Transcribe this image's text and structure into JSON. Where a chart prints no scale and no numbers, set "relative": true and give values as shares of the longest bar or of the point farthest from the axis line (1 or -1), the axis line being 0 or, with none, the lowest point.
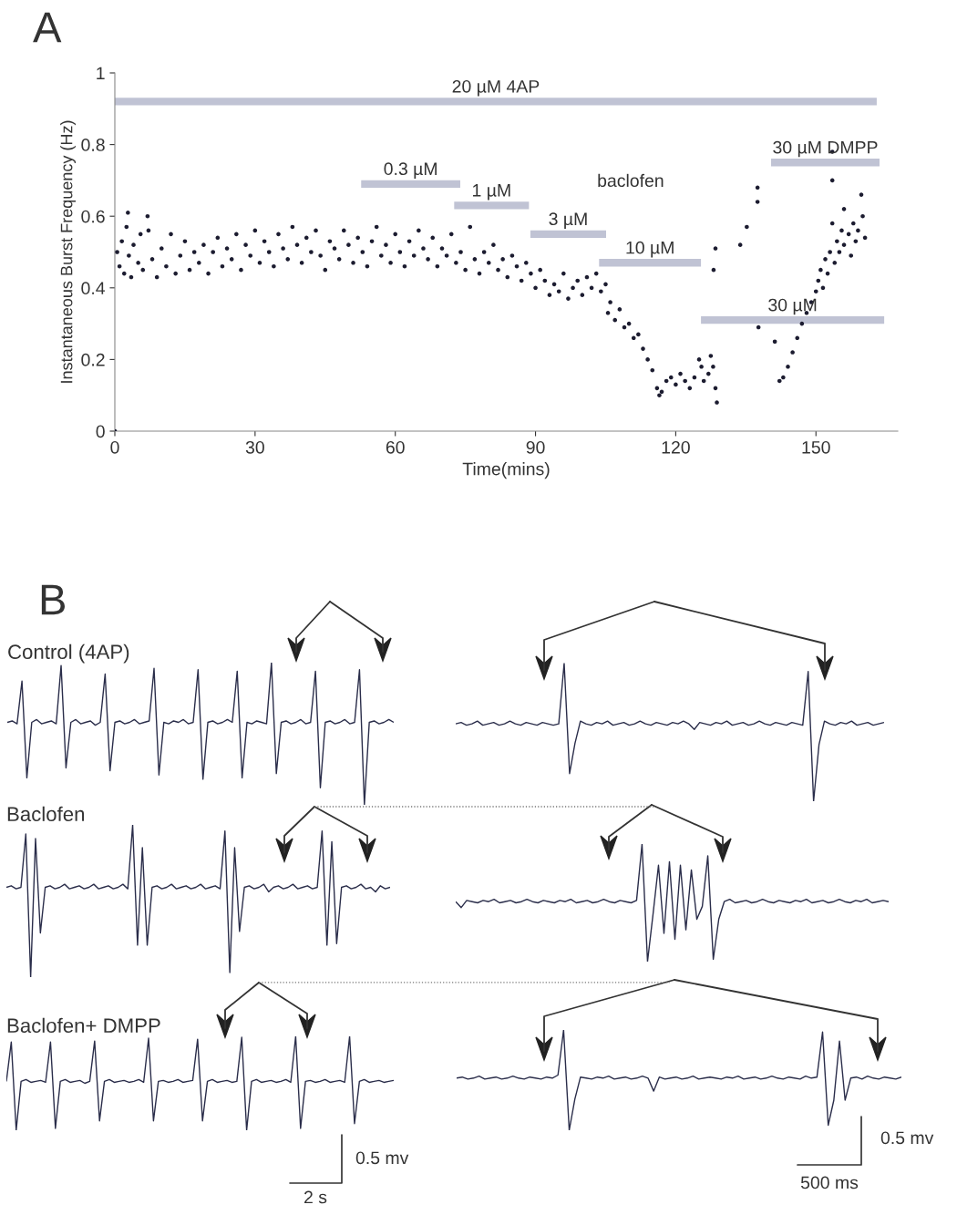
{
  "chart_data": [
    {
      "type": "scatter",
      "xlabel": "Time(mins)",
      "ylabel": "Instantaneous Burst Frequency (Hz)",
      "xlim": [
        0,
        167.5
      ],
      "ylim": [
        0,
        1
      ],
      "xticks": [
        0,
        30,
        60,
        90,
        120,
        150
      ],
      "yticks": [
        0,
        0.2,
        0.4,
        0.6,
        0.8,
        1
      ],
      "annotations": [
        "A",
        "baclofen"
      ],
      "series": [
        {
          "type": "scatter",
          "marker": "circle",
          "color": "#1c1c30",
          "x": [
            0,
            0.5,
            1,
            1.5,
            2,
            2.5,
            2.8,
            3,
            3.5,
            4,
            5,
            5.5,
            6,
            7,
            7.2,
            8,
            9,
            10,
            11,
            12,
            13,
            14,
            15,
            16,
            17,
            18,
            19,
            20,
            21,
            22,
            23,
            24,
            25,
            26,
            27,
            28,
            29,
            30,
            31,
            32,
            33,
            34,
            35,
            36,
            37,
            38,
            39,
            40,
            41,
            42,
            43,
            44,
            45,
            46,
            47,
            48,
            49,
            50,
            51,
            52,
            53,
            54,
            55,
            56,
            57,
            58,
            59,
            60,
            61,
            62,
            63,
            64,
            65,
            66,
            67,
            68,
            69,
            70,
            71,
            72,
            73,
            74,
            75,
            76,
            77,
            78,
            79,
            80,
            81,
            82,
            83,
            84,
            85,
            86,
            87,
            88,
            89,
            90,
            91,
            92,
            93,
            94,
            95,
            96,
            97,
            98,
            99,
            100,
            101,
            102,
            103,
            104,
            105,
            105.5,
            106,
            107,
            108,
            109,
            110,
            111,
            112,
            113,
            114,
            115,
            116,
            116.5,
            117,
            118,
            119,
            120,
            121,
            122,
            123,
            124,
            125,
            125.5,
            126,
            127,
            127.5,
            128,
            128.5,
            128.8,
            128.1,
            128.5,
            133.8,
            135.2,
            137.5,
            137.5,
            137.7,
            141.2,
            142.2,
            143,
            144,
            145,
            146,
            147,
            148,
            149,
            150,
            150.5,
            151,
            151.5,
            152,
            152.5,
            153,
            153.5,
            153.5,
            153.5,
            154,
            154.5,
            155,
            155.5,
            156,
            156,
            157,
            157.5,
            158,
            158.5,
            159,
            159.7,
            160,
            160.5
          ],
          "values": [
            0,
            0.5,
            0.46,
            0.53,
            0.44,
            0.57,
            0.61,
            0.49,
            0.43,
            0.52,
            0.47,
            0.55,
            0.45,
            0.6,
            0.56,
            0.48,
            0.43,
            0.51,
            0.46,
            0.55,
            0.44,
            0.49,
            0.53,
            0.45,
            0.5,
            0.47,
            0.52,
            0.44,
            0.5,
            0.54,
            0.46,
            0.51,
            0.48,
            0.55,
            0.45,
            0.52,
            0.49,
            0.56,
            0.47,
            0.53,
            0.5,
            0.46,
            0.55,
            0.51,
            0.48,
            0.57,
            0.52,
            0.47,
            0.54,
            0.5,
            0.56,
            0.49,
            0.45,
            0.53,
            0.51,
            0.48,
            0.56,
            0.52,
            0.47,
            0.54,
            0.5,
            0.46,
            0.53,
            0.57,
            0.49,
            0.52,
            0.47,
            0.55,
            0.5,
            0.46,
            0.53,
            0.49,
            0.56,
            0.51,
            0.48,
            0.54,
            0.46,
            0.51,
            0.49,
            0.55,
            0.47,
            0.5,
            0.45,
            0.57,
            0.48,
            0.44,
            0.5,
            0.47,
            0.52,
            0.45,
            0.48,
            0.43,
            0.49,
            0.46,
            0.42,
            0.47,
            0.44,
            0.4,
            0.45,
            0.42,
            0.38,
            0.41,
            0.39,
            0.44,
            0.37,
            0.4,
            0.42,
            0.38,
            0.43,
            0.4,
            0.44,
            0.39,
            0.41,
            0.33,
            0.36,
            0.31,
            0.34,
            0.29,
            0.3,
            0.26,
            0.27,
            0.23,
            0.2,
            0.17,
            0.12,
            0.1,
            0.11,
            0.14,
            0.15,
            0.13,
            0.16,
            0.14,
            0.12,
            0.15,
            0.2,
            0.18,
            0.14,
            0.16,
            0.21,
            0.18,
            0.12,
            0.08,
            0.45,
            0.51,
            0.52,
            0.57,
            0.64,
            0.68,
            0.29,
            0.25,
            0.14,
            0.15,
            0.18,
            0.22,
            0.26,
            0.3,
            0.33,
            0.36,
            0.39,
            0.42,
            0.45,
            0.4,
            0.48,
            0.44,
            0.5,
            0.58,
            0.7,
            0.78,
            0.47,
            0.53,
            0.5,
            0.56,
            0.52,
            0.62,
            0.55,
            0.49,
            0.58,
            0.53,
            0.56,
            0.66,
            0.6,
            0.54
          ]
        },
        {
          "type": "line",
          "name": "20 µM 4AP",
          "color": "#c0c3d4",
          "x": [
            0,
            163
          ],
          "values": [
            0.92,
            0.92
          ]
        },
        {
          "type": "line",
          "name": "0.3 µM",
          "color": "#c0c3d4",
          "x": [
            52.7,
            73.9
          ],
          "values": [
            0.69,
            0.69
          ]
        },
        {
          "type": "line",
          "name": "1 µM",
          "color": "#c0c3d4",
          "x": [
            72.6,
            88.6
          ],
          "values": [
            0.63,
            0.63
          ]
        },
        {
          "type": "line",
          "name": "3 µM",
          "color": "#c0c3d4",
          "x": [
            88.9,
            105.1
          ],
          "values": [
            0.55,
            0.55
          ]
        },
        {
          "type": "line",
          "name": "10 µM",
          "color": "#c0c3d4",
          "x": [
            103.6,
            125.4
          ],
          "values": [
            0.47,
            0.47
          ]
        },
        {
          "type": "line",
          "name": "30 µM",
          "color": "#c0c3d4",
          "x": [
            125.4,
            164.6
          ],
          "values": [
            0.31,
            0.31
          ]
        },
        {
          "type": "line",
          "name": "30 µM DMPP",
          "color": "#c0c3d4",
          "x": [
            140.4,
            163.6
          ],
          "values": [
            0.75,
            0.75
          ]
        }
      ]
    },
    {
      "type": "line",
      "relative": true,
      "title": "Control (4AP)",
      "annotations": [
        "B"
      ],
      "color": "#2a2d4a",
      "categories": [
        null,
        null,
        null,
        null,
        null,
        null,
        null,
        null,
        null,
        null,
        null,
        null,
        null,
        null,
        null,
        null,
        null,
        null,
        null,
        null,
        null,
        null,
        null,
        null,
        null,
        null,
        null,
        null,
        null,
        null,
        null,
        null,
        null,
        null,
        null,
        null,
        null,
        null,
        null,
        null,
        null,
        null,
        null,
        null,
        null,
        null,
        null,
        null,
        null,
        null,
        null,
        null,
        null,
        null,
        null,
        null,
        null,
        null,
        null,
        null,
        null,
        null,
        null,
        null,
        null,
        null,
        null,
        null,
        null,
        null,
        null,
        null,
        null,
        null,
        null,
        null,
        null,
        null,
        null,
        null
      ],
      "values": [
        0.58,
        0.59,
        0.57,
        0.87,
        0.19,
        0.58,
        0.6,
        0.57,
        0.58,
        0.59,
        0.57,
        0.98,
        0.26,
        0.58,
        0.6,
        0.57,
        0.58,
        0.59,
        0.56,
        0.58,
        0.92,
        0.24,
        0.58,
        0.59,
        0.57,
        0.58,
        0.6,
        0.57,
        0.58,
        0.59,
        0.96,
        0.21,
        0.58,
        0.57,
        0.59,
        0.58,
        0.6,
        0.57,
        0.58,
        0.95,
        0.18,
        0.58,
        0.59,
        0.57,
        0.58,
        0.6,
        0.58,
        0.94,
        0.19,
        0.58,
        0.57,
        0.59,
        0.58,
        0.57,
        1.0,
        0.22,
        0.58,
        0.59,
        0.57,
        0.58,
        0.6,
        0.57,
        0.58,
        0.94,
        0.12,
        0.58,
        0.59,
        0.57,
        0.58,
        0.6,
        0.57,
        0.58,
        0.95,
        0.0,
        0.58,
        0.59,
        0.57,
        0.58,
        0.6,
        0.58
      ]
    },
    {
      "type": "line",
      "relative": true,
      "color": "#2a2d4a",
      "categories": [
        null,
        null,
        null,
        null,
        null,
        null,
        null,
        null,
        null,
        null,
        null,
        null,
        null,
        null,
        null,
        null,
        null,
        null,
        null,
        null,
        null,
        null,
        null,
        null,
        null,
        null,
        null,
        null,
        null,
        null,
        null,
        null,
        null,
        null,
        null,
        null,
        null,
        null,
        null,
        null,
        null,
        null,
        null,
        null,
        null,
        null,
        null,
        null,
        null,
        null,
        null,
        null,
        null,
        null,
        null,
        null,
        null,
        null,
        null,
        null,
        null,
        null,
        null,
        null,
        null,
        null,
        null,
        null,
        null,
        null,
        null,
        null,
        null,
        null,
        null,
        null,
        null,
        null,
        null,
        null
      ],
      "values": [
        0.56,
        0.57,
        0.55,
        0.56,
        0.58,
        0.55,
        0.56,
        0.57,
        0.55,
        0.56,
        0.58,
        0.56,
        0.55,
        0.57,
        0.56,
        0.55,
        0.57,
        0.56,
        0.55,
        0.56,
        1.0,
        0.2,
        0.42,
        0.58,
        0.56,
        0.55,
        0.57,
        0.56,
        0.58,
        0.55,
        0.56,
        0.57,
        0.55,
        0.56,
        0.58,
        0.56,
        0.55,
        0.57,
        0.56,
        0.55,
        0.57,
        0.56,
        0.58,
        0.56,
        0.52,
        0.57,
        0.56,
        0.55,
        0.57,
        0.56,
        0.58,
        0.55,
        0.56,
        0.57,
        0.55,
        0.56,
        0.58,
        0.56,
        0.55,
        0.57,
        0.56,
        0.55,
        0.57,
        0.56,
        0.55,
        0.94,
        0.0,
        0.41,
        0.58,
        0.56,
        0.55,
        0.57,
        0.56,
        0.58,
        0.55,
        0.56,
        0.57,
        0.55,
        0.56,
        0.57
      ]
    },
    {
      "type": "line",
      "relative": true,
      "title": "Baclofen",
      "color": "#2a2d4a",
      "categories": [
        null,
        null,
        null,
        null,
        null,
        null,
        null,
        null,
        null,
        null,
        null,
        null,
        null,
        null,
        null,
        null,
        null,
        null,
        null,
        null,
        null,
        null,
        null,
        null,
        null,
        null,
        null,
        null,
        null,
        null,
        null,
        null,
        null,
        null,
        null,
        null,
        null,
        null,
        null,
        null,
        null,
        null,
        null,
        null,
        null,
        null,
        null,
        null,
        null,
        null,
        null,
        null,
        null,
        null,
        null,
        null,
        null,
        null,
        null,
        null,
        null,
        null,
        null,
        null,
        null,
        null,
        null,
        null,
        null,
        null,
        null,
        null,
        null,
        null,
        null,
        null,
        null,
        null,
        null,
        null
      ],
      "values": [
        0.59,
        0.6,
        0.58,
        0.59,
        0.94,
        0.0,
        0.91,
        0.29,
        0.59,
        0.6,
        0.58,
        0.59,
        0.61,
        0.58,
        0.59,
        0.6,
        0.58,
        0.59,
        0.61,
        0.58,
        0.59,
        0.6,
        0.58,
        0.59,
        0.61,
        0.58,
        1.0,
        0.21,
        0.85,
        0.21,
        0.59,
        0.6,
        0.58,
        0.59,
        0.61,
        0.58,
        0.59,
        0.6,
        0.58,
        0.59,
        0.61,
        0.58,
        0.59,
        0.6,
        0.58,
        0.96,
        0.03,
        0.85,
        0.3,
        0.59,
        0.6,
        0.58,
        0.59,
        0.61,
        0.56,
        0.59,
        0.6,
        0.58,
        0.59,
        0.61,
        0.58,
        0.59,
        0.6,
        0.58,
        0.59,
        0.96,
        0.21,
        0.89,
        0.22,
        0.59,
        0.6,
        0.58,
        0.59,
        0.61,
        0.58,
        0.59,
        0.56,
        0.6,
        0.58,
        0.59
      ]
    },
    {
      "type": "line",
      "relative": true,
      "color": "#2a2d4a",
      "categories": [
        null,
        null,
        null,
        null,
        null,
        null,
        null,
        null,
        null,
        null,
        null,
        null,
        null,
        null,
        null,
        null,
        null,
        null,
        null,
        null,
        null,
        null,
        null,
        null,
        null,
        null,
        null,
        null,
        null,
        null,
        null,
        null,
        null,
        null,
        null,
        null,
        null,
        null,
        null,
        null,
        null,
        null,
        null,
        null,
        null,
        null,
        null,
        null,
        null,
        null,
        null,
        null,
        null,
        null,
        null,
        null,
        null,
        null,
        null,
        null,
        null,
        null,
        null,
        null,
        null,
        null,
        null,
        null,
        null,
        null,
        null,
        null,
        null,
        null,
        null,
        null,
        null,
        null,
        null,
        null
      ],
      "values": [
        0.51,
        0.46,
        0.52,
        0.51,
        0.5,
        0.52,
        0.51,
        0.53,
        0.5,
        0.51,
        0.52,
        0.5,
        0.51,
        0.53,
        0.51,
        0.5,
        0.52,
        0.51,
        0.5,
        0.52,
        0.51,
        0.53,
        0.5,
        0.51,
        0.52,
        0.5,
        0.51,
        0.53,
        0.51,
        0.5,
        0.52,
        0.51,
        0.5,
        0.52,
        1.0,
        0.0,
        0.4,
        0.82,
        0.24,
        0.85,
        0.19,
        0.82,
        0.27,
        0.78,
        0.36,
        0.47,
        0.9,
        0.02,
        0.36,
        0.51,
        0.53,
        0.5,
        0.51,
        0.52,
        0.5,
        0.51,
        0.53,
        0.51,
        0.5,
        0.52,
        0.51,
        0.5,
        0.52,
        0.51,
        0.53,
        0.5,
        0.51,
        0.52,
        0.5,
        0.51,
        0.53,
        0.51,
        0.5,
        0.52,
        0.51,
        0.53,
        0.5,
        0.51,
        0.52,
        0.51
      ]
    },
    {
      "type": "line",
      "relative": true,
      "title": "Baclofen+ DMPP",
      "annotations": [
        "0.5 mv",
        "2 s"
      ],
      "color": "#2a2d4a",
      "categories": [
        null,
        null,
        null,
        null,
        null,
        null,
        null,
        null,
        null,
        null,
        null,
        null,
        null,
        null,
        null,
        null,
        null,
        null,
        null,
        null,
        null,
        null,
        null,
        null,
        null,
        null,
        null,
        null,
        null,
        null,
        null,
        null,
        null,
        null,
        null,
        null,
        null,
        null,
        null,
        null,
        null,
        null,
        null,
        null,
        null,
        null,
        null,
        null,
        null,
        null,
        null,
        null,
        null,
        null,
        null,
        null,
        null,
        null,
        null,
        null,
        null,
        null,
        null,
        null,
        null,
        null,
        null,
        null,
        null,
        null,
        null,
        null,
        null,
        null,
        null,
        null,
        null,
        null,
        null,
        null
      ],
      "values": [
        0.52,
        0.94,
        0.0,
        0.52,
        0.54,
        0.51,
        0.52,
        0.53,
        0.51,
        0.94,
        0.02,
        0.52,
        0.54,
        0.51,
        0.52,
        0.53,
        0.5,
        0.52,
        0.95,
        0.1,
        0.52,
        0.54,
        0.51,
        0.52,
        0.53,
        0.51,
        0.52,
        0.54,
        0.51,
        0.98,
        0.1,
        0.52,
        0.53,
        0.51,
        0.52,
        0.54,
        0.51,
        0.52,
        0.53,
        0.97,
        0.1,
        0.52,
        0.54,
        0.51,
        0.52,
        0.53,
        0.51,
        0.52,
        0.99,
        0.0,
        0.52,
        0.54,
        0.51,
        0.52,
        0.53,
        0.51,
        0.52,
        0.54,
        0.51,
        1.0,
        0.02,
        0.52,
        0.53,
        0.51,
        0.52,
        0.54,
        0.51,
        0.52,
        0.53,
        0.51,
        1.0,
        0.07,
        0.52,
        0.54,
        0.51,
        0.52,
        0.53,
        0.51,
        0.52,
        0.53
      ]
    },
    {
      "type": "line",
      "relative": true,
      "annotations": [
        "0.5 mv",
        "500 ms"
      ],
      "color": "#2a2d4a",
      "categories": [
        null,
        null,
        null,
        null,
        null,
        null,
        null,
        null,
        null,
        null,
        null,
        null,
        null,
        null,
        null,
        null,
        null,
        null,
        null,
        null,
        null,
        null,
        null,
        null,
        null,
        null,
        null,
        null,
        null,
        null,
        null,
        null,
        null,
        null,
        null,
        null,
        null,
        null,
        null,
        null,
        null,
        null,
        null,
        null,
        null,
        null,
        null,
        null,
        null,
        null,
        null,
        null,
        null,
        null,
        null,
        null,
        null,
        null,
        null,
        null,
        null,
        null,
        null,
        null,
        null,
        null,
        null,
        null,
        null,
        null,
        null,
        null,
        null,
        null,
        null,
        null,
        null,
        null,
        null,
        null
      ],
      "values": [
        0.52,
        0.53,
        0.51,
        0.52,
        0.54,
        0.51,
        0.52,
        0.53,
        0.51,
        0.52,
        0.54,
        0.52,
        0.51,
        0.53,
        0.52,
        0.51,
        0.53,
        0.52,
        0.55,
        1.0,
        0.0,
        0.31,
        0.53,
        0.52,
        0.51,
        0.53,
        0.52,
        0.54,
        0.51,
        0.52,
        0.53,
        0.51,
        0.52,
        0.54,
        0.52,
        0.39,
        0.53,
        0.51,
        0.52,
        0.53,
        0.51,
        0.52,
        0.54,
        0.51,
        0.52,
        0.53,
        0.52,
        0.51,
        0.53,
        0.52,
        0.54,
        0.51,
        0.52,
        0.53,
        0.51,
        0.52,
        0.54,
        0.52,
        0.51,
        0.53,
        0.52,
        0.51,
        0.54,
        0.52,
        0.53,
        0.98,
        0.05,
        0.3,
        0.89,
        0.3,
        0.52,
        0.53,
        0.51,
        0.54,
        0.52,
        0.51,
        0.53,
        0.52,
        0.51,
        0.53
      ]
    }
  ]
}
